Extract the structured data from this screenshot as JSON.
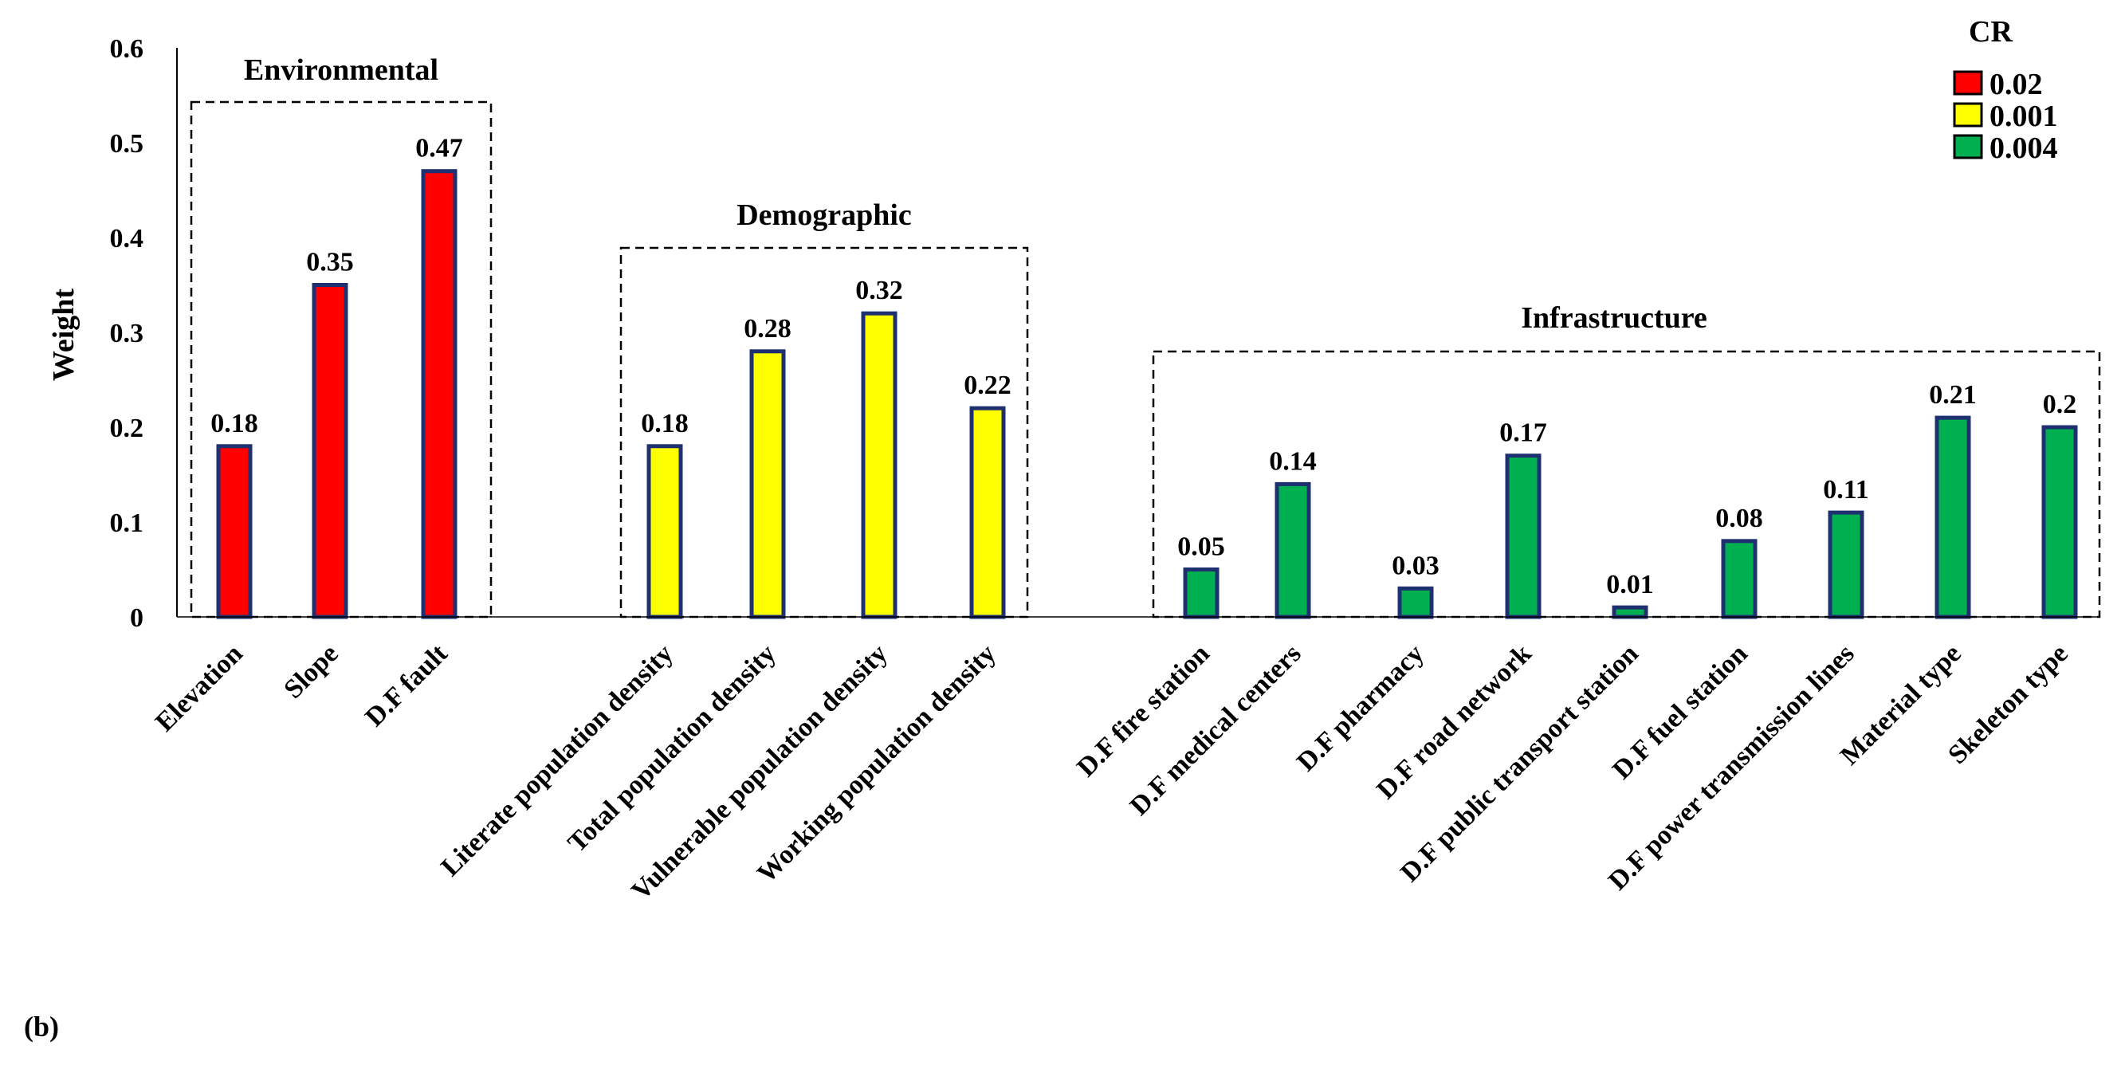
{
  "chart_data": {
    "type": "bar",
    "panel_label": "(b)",
    "ylabel": "Weight",
    "ylim": [
      0,
      0.6
    ],
    "yticks": [
      {
        "value": 0,
        "label": "0"
      },
      {
        "value": 0.1,
        "label": "0.1"
      },
      {
        "value": 0.2,
        "label": "0.2"
      },
      {
        "value": 0.3,
        "label": "0.3"
      },
      {
        "value": 0.4,
        "label": "0.4"
      },
      {
        "value": 0.5,
        "label": "0.5"
      },
      {
        "value": 0.6,
        "label": "0.6"
      }
    ],
    "legend": {
      "title": "CR",
      "placement": "top-right",
      "entries": [
        {
          "label": "0.02",
          "color": "#ff0000"
        },
        {
          "label": "0.001",
          "color": "#ffff00"
        },
        {
          "label": "0.004",
          "color": "#00b050"
        }
      ]
    },
    "bar_border_color": "#1f3070",
    "groups": [
      {
        "name": "Environmental",
        "color": "#ff0000",
        "cr": "0.02",
        "categories": [
          "Elevation",
          "Slope",
          "D.F fault"
        ],
        "values": [
          0.18,
          0.35,
          0.47
        ],
        "value_labels": [
          "0.18",
          "0.35",
          "0.47"
        ]
      },
      {
        "name": "Demographic",
        "color": "#ffff00",
        "cr": "0.001",
        "categories": [
          "Literate population density",
          "Total population density",
          "Vulnerable population density",
          "Working population density"
        ],
        "values": [
          0.18,
          0.28,
          0.32,
          0.22
        ],
        "value_labels": [
          "0.18",
          "0.28",
          "0.32",
          "0.22"
        ]
      },
      {
        "name": "Infrastructure",
        "color": "#00b050",
        "cr": "0.004",
        "categories": [
          "D.F fire station",
          "D.F medical centers",
          "D.F pharmacy",
          "D.F road network",
          "D.F public transport station",
          "D.F fuel station",
          "D.F power transmission lines",
          "Material type",
          "Skeleton type"
        ],
        "values": [
          0.05,
          0.14,
          0.03,
          0.17,
          0.01,
          0.08,
          0.11,
          0.21,
          0.2
        ],
        "value_labels": [
          "0.05",
          "0.14",
          "0.03",
          "0.17",
          "0.01",
          "0.08",
          "0.11",
          "0.21",
          "0.2"
        ]
      }
    ]
  }
}
